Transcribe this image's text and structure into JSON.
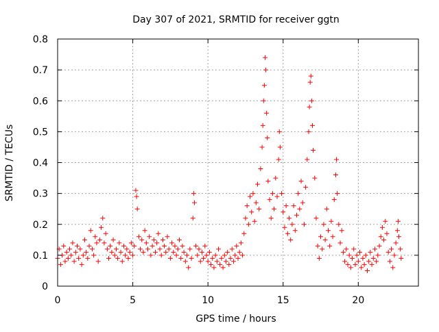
{
  "chart_data": {
    "type": "scatter",
    "title": "Day 307 of 2021, SRMTID for receiver ggtn",
    "xlabel": "GPS time / hours",
    "ylabel": "SRMTID / TECUs",
    "xlim": [
      0,
      24
    ],
    "ylim": [
      0,
      0.8
    ],
    "x_ticks": [
      0,
      5,
      10,
      15,
      20
    ],
    "x_tick_labels": [
      "0",
      "5",
      "10",
      "15",
      "20"
    ],
    "y_ticks": [
      0,
      0.1,
      0.2,
      0.3,
      0.4,
      0.5,
      0.6,
      0.7,
      0.8
    ],
    "y_tick_labels": [
      "0",
      "0.1",
      "0.2",
      "0.3",
      "0.4",
      "0.5",
      "0.6",
      "0.7",
      "0.8"
    ],
    "grid": true,
    "marker": "+",
    "marker_color": "#ff0000",
    "series": [
      {
        "name": "SRMTID",
        "points": [
          [
            0.0,
            0.09
          ],
          [
            0.1,
            0.12
          ],
          [
            0.2,
            0.07
          ],
          [
            0.3,
            0.1
          ],
          [
            0.4,
            0.13
          ],
          [
            0.5,
            0.08
          ],
          [
            0.6,
            0.11
          ],
          [
            0.7,
            0.09
          ],
          [
            0.8,
            0.12
          ],
          [
            0.9,
            0.1
          ],
          [
            1.0,
            0.14
          ],
          [
            1.1,
            0.08
          ],
          [
            1.2,
            0.11
          ],
          [
            1.3,
            0.13
          ],
          [
            1.4,
            0.09
          ],
          [
            1.5,
            0.12
          ],
          [
            1.6,
            0.07
          ],
          [
            1.7,
            0.1
          ],
          [
            1.8,
            0.15
          ],
          [
            1.9,
            0.11
          ],
          [
            2.0,
            0.09
          ],
          [
            2.1,
            0.13
          ],
          [
            2.2,
            0.18
          ],
          [
            2.3,
            0.12
          ],
          [
            2.4,
            0.1
          ],
          [
            2.5,
            0.16
          ],
          [
            2.6,
            0.14
          ],
          [
            2.7,
            0.08
          ],
          [
            2.8,
            0.15
          ],
          [
            2.9,
            0.19
          ],
          [
            3.0,
            0.22
          ],
          [
            3.1,
            0.14
          ],
          [
            3.2,
            0.17
          ],
          [
            3.3,
            0.12
          ],
          [
            3.4,
            0.09
          ],
          [
            3.5,
            0.13
          ],
          [
            3.6,
            0.11
          ],
          [
            3.7,
            0.15
          ],
          [
            3.8,
            0.1
          ],
          [
            3.9,
            0.12
          ],
          [
            4.0,
            0.09
          ],
          [
            4.1,
            0.14
          ],
          [
            4.2,
            0.11
          ],
          [
            4.3,
            0.08
          ],
          [
            4.4,
            0.13
          ],
          [
            4.5,
            0.1
          ],
          [
            4.6,
            0.12
          ],
          [
            4.7,
            0.09
          ],
          [
            4.8,
            0.11
          ],
          [
            4.9,
            0.14
          ],
          [
            5.0,
            0.1
          ],
          [
            5.1,
            0.13
          ],
          [
            5.2,
            0.31
          ],
          [
            5.25,
            0.29
          ],
          [
            5.3,
            0.25
          ],
          [
            5.4,
            0.16
          ],
          [
            5.5,
            0.12
          ],
          [
            5.6,
            0.15
          ],
          [
            5.7,
            0.11
          ],
          [
            5.8,
            0.18
          ],
          [
            5.9,
            0.14
          ],
          [
            6.0,
            0.12
          ],
          [
            6.1,
            0.16
          ],
          [
            6.2,
            0.1
          ],
          [
            6.3,
            0.13
          ],
          [
            6.4,
            0.15
          ],
          [
            6.5,
            0.11
          ],
          [
            6.6,
            0.14
          ],
          [
            6.7,
            0.17
          ],
          [
            6.8,
            0.12
          ],
          [
            6.9,
            0.1
          ],
          [
            7.0,
            0.15
          ],
          [
            7.1,
            0.13
          ],
          [
            7.2,
            0.11
          ],
          [
            7.3,
            0.16
          ],
          [
            7.4,
            0.12
          ],
          [
            7.5,
            0.09
          ],
          [
            7.6,
            0.14
          ],
          [
            7.7,
            0.11
          ],
          [
            7.8,
            0.13
          ],
          [
            7.9,
            0.1
          ],
          [
            8.0,
            0.12
          ],
          [
            8.1,
            0.15
          ],
          [
            8.2,
            0.09
          ],
          [
            8.3,
            0.13
          ],
          [
            8.4,
            0.11
          ],
          [
            8.5,
            0.08
          ],
          [
            8.6,
            0.1
          ],
          [
            8.7,
            0.06
          ],
          [
            8.8,
            0.12
          ],
          [
            8.9,
            0.09
          ],
          [
            9.0,
            0.22
          ],
          [
            9.05,
            0.3
          ],
          [
            9.1,
            0.27
          ],
          [
            9.2,
            0.13
          ],
          [
            9.3,
            0.1
          ],
          [
            9.4,
            0.12
          ],
          [
            9.5,
            0.08
          ],
          [
            9.6,
            0.11
          ],
          [
            9.7,
            0.09
          ],
          [
            9.8,
            0.13
          ],
          [
            9.9,
            0.1
          ],
          [
            10.0,
            0.08
          ],
          [
            10.1,
            0.11
          ],
          [
            10.2,
            0.07
          ],
          [
            10.3,
            0.09
          ],
          [
            10.4,
            0.06
          ],
          [
            10.5,
            0.1
          ],
          [
            10.6,
            0.08
          ],
          [
            10.7,
            0.12
          ],
          [
            10.8,
            0.07
          ],
          [
            10.9,
            0.09
          ],
          [
            11.0,
            0.06
          ],
          [
            11.1,
            0.1
          ],
          [
            11.2,
            0.08
          ],
          [
            11.3,
            0.11
          ],
          [
            11.4,
            0.07
          ],
          [
            11.5,
            0.09
          ],
          [
            11.6,
            0.12
          ],
          [
            11.7,
            0.08
          ],
          [
            11.8,
            0.1
          ],
          [
            11.9,
            0.13
          ],
          [
            12.0,
            0.09
          ],
          [
            12.1,
            0.11
          ],
          [
            12.2,
            0.14
          ],
          [
            12.3,
            0.1
          ],
          [
            12.4,
            0.17
          ],
          [
            12.5,
            0.22
          ],
          [
            12.6,
            0.26
          ],
          [
            12.7,
            0.2
          ],
          [
            12.8,
            0.29
          ],
          [
            12.9,
            0.24
          ],
          [
            13.0,
            0.3
          ],
          [
            13.1,
            0.21
          ],
          [
            13.2,
            0.27
          ],
          [
            13.3,
            0.33
          ],
          [
            13.4,
            0.25
          ],
          [
            13.5,
            0.38
          ],
          [
            13.6,
            0.45
          ],
          [
            13.65,
            0.52
          ],
          [
            13.7,
            0.6
          ],
          [
            13.75,
            0.65
          ],
          [
            13.8,
            0.74
          ],
          [
            13.85,
            0.7
          ],
          [
            13.9,
            0.56
          ],
          [
            13.95,
            0.48
          ],
          [
            14.0,
            0.34
          ],
          [
            14.1,
            0.28
          ],
          [
            14.2,
            0.22
          ],
          [
            14.3,
            0.3
          ],
          [
            14.4,
            0.25
          ],
          [
            14.5,
            0.35
          ],
          [
            14.6,
            0.29
          ],
          [
            14.7,
            0.41
          ],
          [
            14.75,
            0.5
          ],
          [
            14.8,
            0.45
          ],
          [
            14.9,
            0.3
          ],
          [
            15.0,
            0.24
          ],
          [
            15.1,
            0.19
          ],
          [
            15.2,
            0.26
          ],
          [
            15.3,
            0.17
          ],
          [
            15.4,
            0.22
          ],
          [
            15.5,
            0.15
          ],
          [
            15.6,
            0.2
          ],
          [
            15.7,
            0.26
          ],
          [
            15.8,
            0.18
          ],
          [
            15.9,
            0.23
          ],
          [
            16.0,
            0.3
          ],
          [
            16.1,
            0.25
          ],
          [
            16.2,
            0.34
          ],
          [
            16.3,
            0.27
          ],
          [
            16.4,
            0.2
          ],
          [
            16.5,
            0.32
          ],
          [
            16.6,
            0.41
          ],
          [
            16.7,
            0.5
          ],
          [
            16.75,
            0.58
          ],
          [
            16.8,
            0.66
          ],
          [
            16.85,
            0.68
          ],
          [
            16.9,
            0.6
          ],
          [
            16.95,
            0.52
          ],
          [
            17.0,
            0.44
          ],
          [
            17.1,
            0.35
          ],
          [
            17.2,
            0.22
          ],
          [
            17.3,
            0.13
          ],
          [
            17.4,
            0.09
          ],
          [
            17.5,
            0.16
          ],
          [
            17.6,
            0.12
          ],
          [
            17.7,
            0.2
          ],
          [
            17.8,
            0.15
          ],
          [
            17.9,
            0.25
          ],
          [
            18.0,
            0.18
          ],
          [
            18.1,
            0.13
          ],
          [
            18.2,
            0.21
          ],
          [
            18.3,
            0.16
          ],
          [
            18.4,
            0.28
          ],
          [
            18.5,
            0.36
          ],
          [
            18.55,
            0.41
          ],
          [
            18.6,
            0.3
          ],
          [
            18.7,
            0.2
          ],
          [
            18.8,
            0.14
          ],
          [
            18.9,
            0.18
          ],
          [
            19.0,
            0.11
          ],
          [
            19.1,
            0.08
          ],
          [
            19.2,
            0.12
          ],
          [
            19.3,
            0.07
          ],
          [
            19.4,
            0.1
          ],
          [
            19.5,
            0.06
          ],
          [
            19.6,
            0.09
          ],
          [
            19.7,
            0.12
          ],
          [
            19.8,
            0.07
          ],
          [
            19.9,
            0.1
          ],
          [
            20.0,
            0.08
          ],
          [
            20.1,
            0.11
          ],
          [
            20.2,
            0.06
          ],
          [
            20.3,
            0.09
          ],
          [
            20.4,
            0.07
          ],
          [
            20.5,
            0.1
          ],
          [
            20.6,
            0.05
          ],
          [
            20.7,
            0.08
          ],
          [
            20.8,
            0.11
          ],
          [
            20.9,
            0.07
          ],
          [
            21.0,
            0.09
          ],
          [
            21.1,
            0.12
          ],
          [
            21.2,
            0.08
          ],
          [
            21.3,
            0.1
          ],
          [
            21.4,
            0.13
          ],
          [
            21.5,
            0.16
          ],
          [
            21.6,
            0.19
          ],
          [
            21.7,
            0.15
          ],
          [
            21.8,
            0.21
          ],
          [
            21.9,
            0.17
          ],
          [
            22.0,
            0.11
          ],
          [
            22.1,
            0.08
          ],
          [
            22.2,
            0.12
          ],
          [
            22.3,
            0.06
          ],
          [
            22.4,
            0.1
          ],
          [
            22.5,
            0.14
          ],
          [
            22.6,
            0.18
          ],
          [
            22.65,
            0.21
          ],
          [
            22.7,
            0.16
          ],
          [
            22.8,
            0.12
          ],
          [
            22.85,
            0.09
          ]
        ]
      }
    ]
  }
}
